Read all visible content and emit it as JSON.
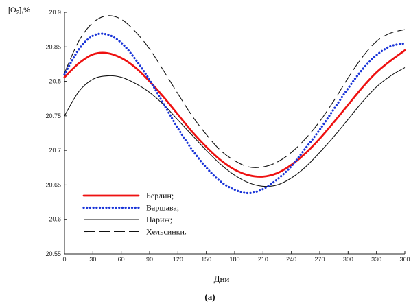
{
  "chart_data": {
    "type": "line",
    "ylabel": "[O2],%",
    "xlabel": "Дни",
    "caption": "(a)",
    "xlim": [
      0,
      360
    ],
    "ylim": [
      20.55,
      20.9
    ],
    "x_ticks": [
      "0",
      "30",
      "60",
      "90",
      "120",
      "150",
      "180",
      "210",
      "240",
      "270",
      "300",
      "330",
      "360"
    ],
    "y_ticks": [
      "20.55",
      "20.6",
      "20.65",
      "20.7",
      "20.75",
      "20.8",
      "20.85",
      "20.9"
    ],
    "x": [
      0,
      15,
      30,
      45,
      60,
      75,
      90,
      105,
      120,
      135,
      150,
      165,
      180,
      195,
      210,
      225,
      240,
      255,
      270,
      285,
      300,
      315,
      330,
      345,
      360
    ],
    "series": [
      {
        "name": "Берлин;",
        "color": "#ee1111",
        "style": "solid-thick",
        "values": [
          20.806,
          20.826,
          20.839,
          20.841,
          20.834,
          20.82,
          20.8,
          20.777,
          20.752,
          20.727,
          20.705,
          20.686,
          20.672,
          20.664,
          20.662,
          20.667,
          20.679,
          20.696,
          20.717,
          20.741,
          20.766,
          20.791,
          20.813,
          20.83,
          20.845
        ]
      },
      {
        "name": "Варшава;",
        "color": "#1a35d8",
        "style": "dotted",
        "values": [
          20.81,
          20.846,
          20.866,
          20.868,
          20.856,
          20.832,
          20.802,
          20.767,
          20.732,
          20.701,
          20.675,
          20.655,
          20.643,
          20.638,
          20.644,
          20.658,
          20.677,
          20.703,
          20.73,
          20.76,
          20.79,
          20.817,
          20.838,
          20.851,
          20.855
        ]
      },
      {
        "name": "Париж;",
        "color": "#111111",
        "style": "solid-thin",
        "values": [
          20.75,
          20.785,
          20.803,
          20.808,
          20.806,
          20.797,
          20.784,
          20.766,
          20.744,
          20.722,
          20.7,
          20.68,
          20.664,
          20.653,
          20.648,
          20.65,
          20.66,
          20.676,
          20.697,
          20.72,
          20.745,
          20.77,
          20.792,
          20.808,
          20.82
        ]
      },
      {
        "name": "Хельсинки.",
        "color": "#111111",
        "style": "dashed",
        "values": [
          20.812,
          20.858,
          20.885,
          20.895,
          20.89,
          20.872,
          20.847,
          20.815,
          20.782,
          20.75,
          20.723,
          20.7,
          20.685,
          20.676,
          20.676,
          20.683,
          20.697,
          20.717,
          20.742,
          20.772,
          20.805,
          20.835,
          20.858,
          20.87,
          20.875
        ]
      }
    ]
  }
}
